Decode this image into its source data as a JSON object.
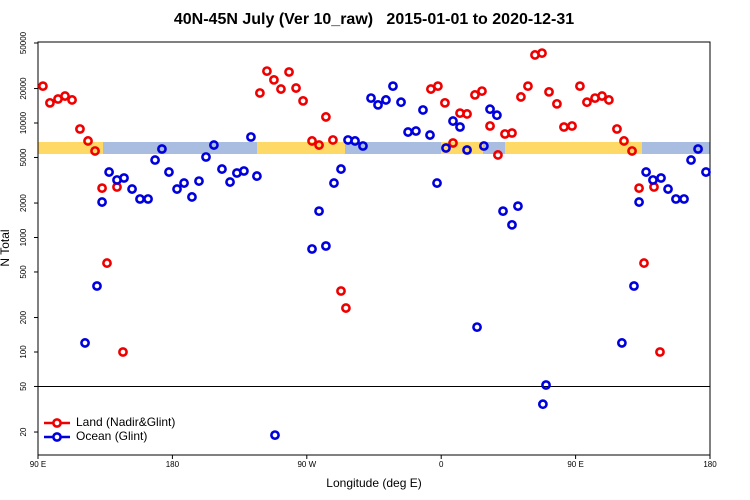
{
  "chart_data": {
    "type": "scatter",
    "title": "40N-45N July (Ver 10_raw)   2015-01-01 to 2020-12-31",
    "xlabel": "Longitude (deg E)",
    "ylabel": "N Total",
    "log_y": true,
    "legend": "bottom-left",
    "xlim": [
      90,
      540
    ],
    "ylim": [
      12.6,
      51000
    ],
    "xticks": [
      {
        "value": 90,
        "label": "90 E"
      },
      {
        "value": 180,
        "label": "180"
      },
      {
        "value": 270,
        "label": "90 W"
      },
      {
        "value": 360,
        "label": "0"
      },
      {
        "value": 450,
        "label": "90 E"
      },
      {
        "value": 540,
        "label": "180"
      }
    ],
    "yticks": [
      20,
      50,
      100,
      200,
      500,
      1000,
      2000,
      5000,
      10000,
      20000,
      50000
    ],
    "series": [
      {
        "name": "Land (Nadir&Glint)",
        "color": "#ee0000",
        "x": [
          93.3,
          98.0,
          103.4,
          108.1,
          112.8,
          118.1,
          123.5,
          128.2,
          132.9,
          136.2,
          142.9,
          146.9,
          238.6,
          243.3,
          248.0,
          252.7,
          258.1,
          262.8,
          267.5,
          273.5,
          278.2,
          282.8,
          287.5,
          292.9,
          296.2,
          353.1,
          357.8,
          362.5,
          367.9,
          372.6,
          377.3,
          382.6,
          387.3,
          392.7,
          398.0,
          402.7,
          407.4,
          413.4,
          418.1,
          422.8,
          427.5,
          432.2,
          437.5,
          442.2,
          447.6,
          452.9,
          457.6,
          463.0,
          467.7,
          472.3,
          477.7,
          482.4,
          487.8,
          492.5,
          495.8,
          502.5,
          506.5
        ],
        "values": [
          21000,
          15000,
          16200,
          17200,
          15900,
          8870,
          6970,
          5700,
          2700,
          598,
          2760,
          100,
          18300,
          28400,
          23800,
          19800,
          27900,
          20200,
          15600,
          6970,
          6420,
          11300,
          7110,
          341,
          242,
          19800,
          21000,
          15000,
          6690,
          12200,
          12000,
          17600,
          19000,
          9420,
          5260,
          8020,
          8180,
          16900,
          21000,
          39300,
          40800,
          18700,
          14700,
          9230,
          9420,
          21000,
          15200,
          16500,
          17200,
          15900,
          8870,
          6970,
          5700,
          2700,
          598,
          2760,
          100
        ]
      },
      {
        "name": "Ocean (Glint)",
        "color": "#0000dd",
        "x": [
          121.5,
          129.5,
          132.9,
          137.6,
          142.9,
          147.6,
          153.0,
          158.3,
          163.7,
          168.4,
          173.0,
          177.7,
          183.1,
          187.8,
          193.1,
          197.8,
          202.5,
          207.8,
          213.2,
          218.6,
          223.2,
          227.9,
          232.6,
          236.6,
          248.7,
          273.5,
          278.2,
          282.8,
          288.2,
          292.9,
          297.6,
          302.3,
          307.6,
          313.0,
          317.7,
          323.0,
          327.7,
          333.1,
          337.8,
          343.1,
          347.8,
          352.5,
          357.2,
          363.2,
          367.9,
          372.6,
          377.3,
          384.0,
          388.6,
          392.7,
          397.3,
          401.4,
          407.4,
          411.4,
          428.1,
          430.2,
          481.0,
          489.1,
          492.5,
          497.2,
          501.8,
          507.2,
          511.9,
          517.2,
          522.6,
          527.3,
          532.0,
          537.3
        ],
        "values": [
          120,
          377,
          2040,
          3730,
          3180,
          3310,
          2650,
          2170,
          2170,
          4750,
          5930,
          3730,
          2650,
          2990,
          2260,
          3110,
          5050,
          6420,
          3960,
          3050,
          3660,
          3810,
          7550,
          3440,
          18.8,
          794,
          1700,
          843,
          2990,
          3960,
          7110,
          6970,
          6300,
          16500,
          14400,
          15900,
          21000,
          15200,
          8340,
          8510,
          13000,
          7850,
          2990,
          6050,
          10400,
          9230,
          5810,
          165,
          6300,
          13200,
          11700,
          1700,
          1290,
          1880,
          35,
          51.5,
          120,
          377,
          2040,
          3730,
          3180,
          3310,
          2650,
          2170,
          2170,
          4750,
          5930,
          3730
        ]
      }
    ]
  }
}
